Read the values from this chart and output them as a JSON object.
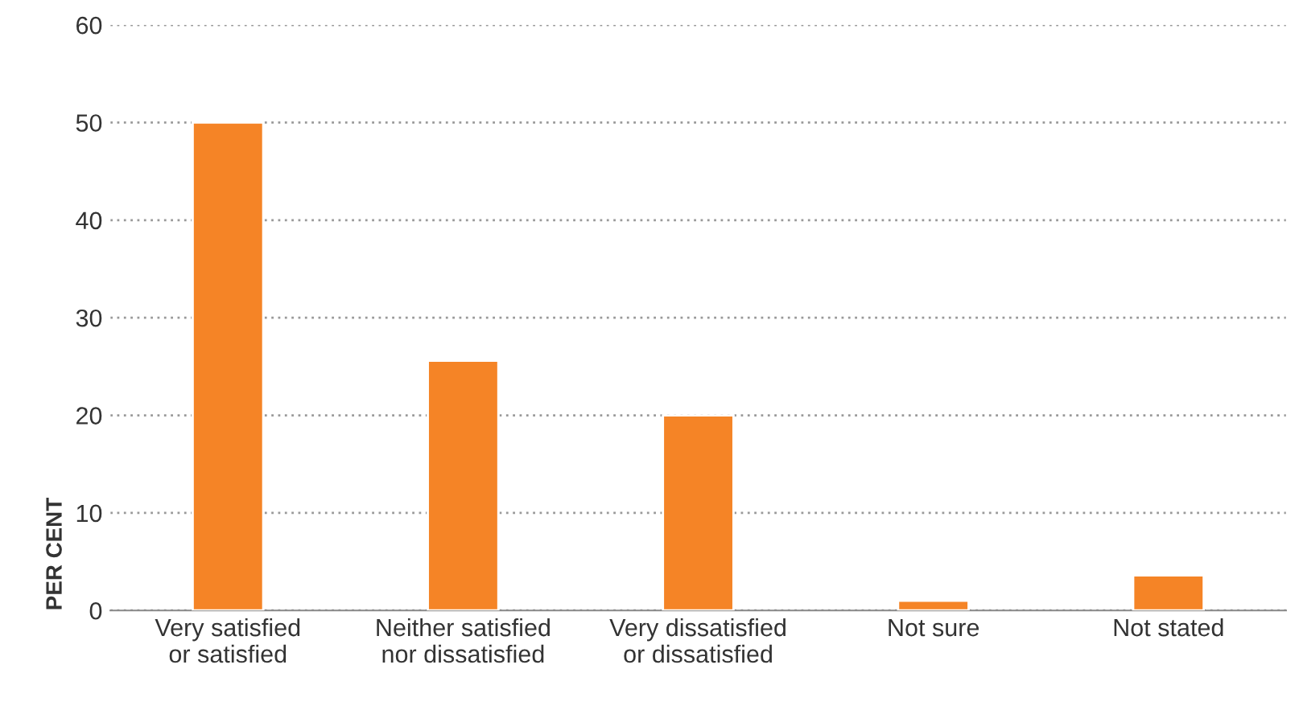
{
  "chart_data": {
    "type": "bar",
    "ylabel": "PER CENT",
    "categories": [
      "Very satisfied\nor satisfied",
      "Neither satisfied\nnor dissatisfied",
      "Very dissatisfied\nor dissatisfied",
      "Not sure",
      "Not stated"
    ],
    "values": [
      50,
      25.6,
      20,
      1,
      3.6
    ],
    "color": "#f58426",
    "ylim": [
      0,
      60
    ],
    "yticks": [
      0,
      10,
      20,
      30,
      40,
      50,
      60
    ],
    "grid": "y"
  }
}
